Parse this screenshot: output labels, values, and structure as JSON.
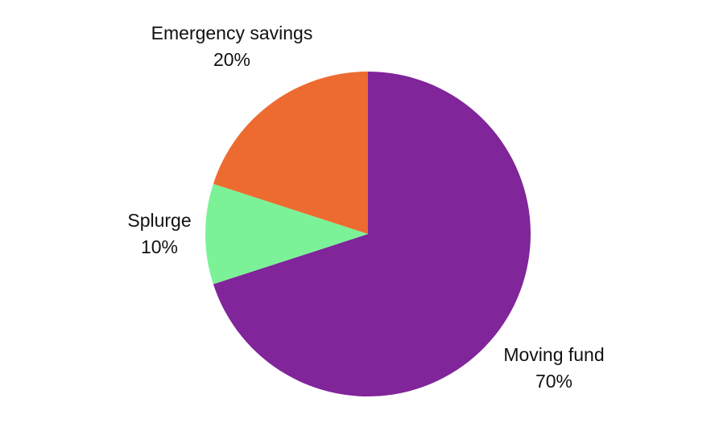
{
  "chart_data": {
    "type": "pie",
    "start_angle_deg": 0,
    "direction": "clockwise",
    "slices": [
      {
        "label": "Moving fund",
        "value": 70,
        "value_label": "70%",
        "color": "#80259A"
      },
      {
        "label": "Splurge",
        "value": 10,
        "value_label": "10%",
        "color": "#7CF298"
      },
      {
        "label": "Emergency savings",
        "value": 20,
        "value_label": "20%",
        "color": "#ED6B30"
      }
    ]
  }
}
